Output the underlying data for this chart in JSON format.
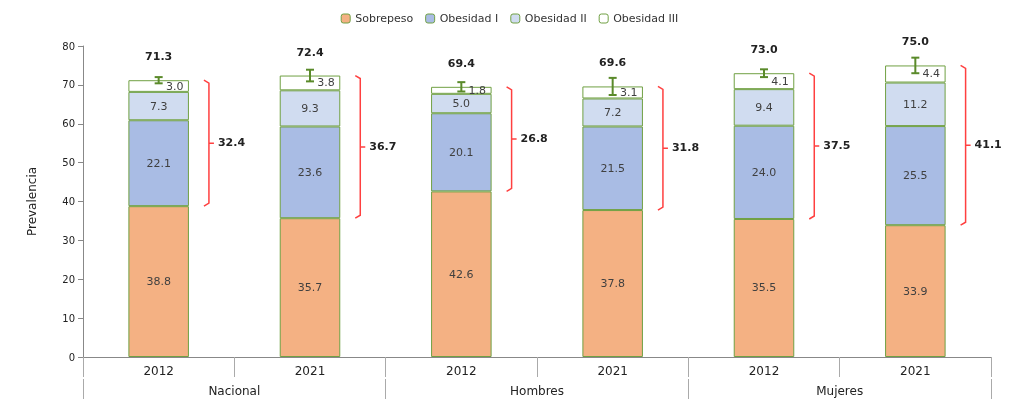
{
  "chart_data": {
    "type": "bar",
    "stacked": true,
    "ylabel": "Prevalencia",
    "categories": [
      "2012",
      "2021",
      "2012",
      "2021",
      "2012",
      "2021"
    ],
    "series": [
      {
        "name": "Sobrepeso",
        "color": "#f4b183",
        "values": [
          38.8,
          35.7,
          42.6,
          37.8,
          35.5,
          33.9
        ],
        "value_labels": [
          "38.8",
          "35.7",
          "42.6",
          "37.8",
          "35.5",
          "33.9"
        ]
      },
      {
        "name": "Obesidad I",
        "color": "#a9bce4",
        "values": [
          22.1,
          23.6,
          20.1,
          21.5,
          24.0,
          25.5
        ],
        "value_labels": [
          "22.1",
          "23.6",
          "20.1",
          "21.5",
          "24.0",
          "25.5"
        ]
      },
      {
        "name": "Obesidad II",
        "color": "#d0dcf0",
        "values": [
          7.3,
          9.3,
          5.0,
          7.2,
          9.4,
          11.2
        ],
        "value_labels": [
          "7.3",
          "9.3",
          "5.0",
          "7.2",
          "9.4",
          "11.2"
        ]
      },
      {
        "name": "Obesidad III",
        "color": "#ffffff",
        "values": [
          3.0,
          3.8,
          1.8,
          3.1,
          4.1,
          4.4
        ],
        "value_labels": [
          "3.0",
          "3.8",
          "1.8",
          "3.1",
          "4.1",
          "4.4"
        ],
        "errors": [
          0.8,
          1.5,
          1.2,
          2.2,
          1.0,
          2.0
        ]
      }
    ],
    "totals": [
      "71.3",
      "72.4",
      "69.4",
      "69.6",
      "73.0",
      "75.0"
    ],
    "annotations": [
      "Nacional",
      "Hombres",
      "Mujeres",
      "32.4",
      "36.7",
      "26.8",
      "31.8",
      "37.5",
      "41.1"
    ],
    "legend": "top",
    "grid": false,
    "ylim": [
      0,
      80
    ],
    "yticks": [
      0,
      10,
      20,
      30,
      40,
      50,
      60,
      70,
      80
    ]
  }
}
